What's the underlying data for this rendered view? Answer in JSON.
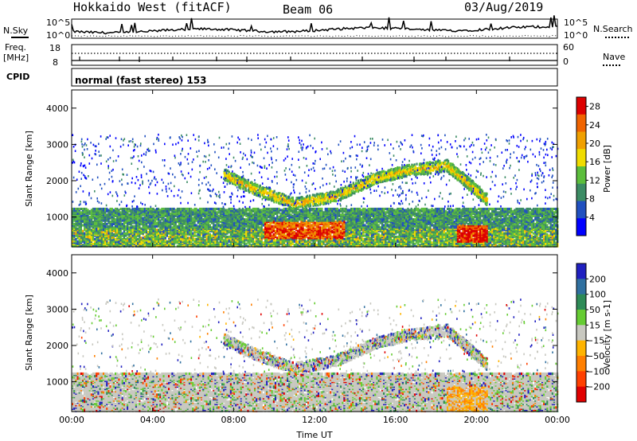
{
  "header": {
    "station": "Hokkaido West (fitACF)",
    "beam": "Beam 06",
    "date": "03/Aug/2019"
  },
  "top_panels": {
    "nsky_label": "N.Sky",
    "nsearch_label": "N.Search",
    "noise_ticks": [
      "10^5",
      "10^0"
    ],
    "freq_label_1": "Freq.",
    "freq_label_2": "[MHz]",
    "freq_ticks": [
      18,
      8
    ],
    "nave_label": "Nave",
    "nave_ticks": [
      60,
      0
    ],
    "cpid_label": "CPID",
    "cpid_text": "normal (fast stereo) 153"
  },
  "chart_data": [
    {
      "type": "heatmap",
      "name": "power",
      "ylabel": "Slant Range [km]",
      "xlabel": "",
      "ylim": [
        180,
        4500
      ],
      "yticks": [
        1000,
        2000,
        3000,
        4000
      ],
      "colorbar_label": "Power [dB]",
      "colorbar_ticks": [
        4,
        8,
        12,
        16,
        20,
        24,
        28
      ],
      "colorbar_range": [
        0,
        30
      ],
      "colors": [
        "#0000ff",
        "#2050c0",
        "#3c8c64",
        "#5cbe3c",
        "#f0dc00",
        "#f0a000",
        "#f06400",
        "#dc0000"
      ],
      "echo_bands": [
        {
          "from_hour": 0,
          "to_hour": 24,
          "range_min_km": 200,
          "range_max_km": 1250,
          "typical_db": 14
        },
        {
          "from_hour": 9.5,
          "to_hour": 13.5,
          "range_min_km": 400,
          "range_max_km": 900,
          "typical_db": 20
        },
        {
          "from_hour": 19,
          "to_hour": 20.5,
          "range_min_km": 300,
          "range_max_km": 800,
          "typical_db": 22
        }
      ],
      "ionospheric_arcs": [
        {
          "hour": 7.5,
          "range_km": 2200
        },
        {
          "hour": 9.0,
          "range_km": 1800
        },
        {
          "hour": 11.0,
          "range_km": 1400
        },
        {
          "hour": 13.0,
          "range_km": 1600
        },
        {
          "hour": 15.0,
          "range_km": 2100
        },
        {
          "hour": 16.5,
          "range_km": 2300
        },
        {
          "hour": 18.5,
          "range_km": 2450
        },
        {
          "hour": 19.5,
          "range_km": 2000
        },
        {
          "hour": 20.5,
          "range_km": 1500
        }
      ]
    },
    {
      "type": "heatmap",
      "name": "velocity",
      "ylabel": "Slant Range [km]",
      "xlabel": "Time UT",
      "ylim": [
        180,
        4500
      ],
      "yticks": [
        1000,
        2000,
        3000,
        4000
      ],
      "xticks": [
        "00:00",
        "04:00",
        "08:00",
        "12:00",
        "16:00",
        "20:00",
        "00:00"
      ],
      "xrange_hours": [
        0,
        24
      ],
      "colorbar_label": "Velocity [m s-1]",
      "colorbar_ticks": [
        200,
        100,
        50,
        15,
        -15,
        -50,
        -100,
        -200
      ],
      "colors": [
        "#2020c0",
        "#3070a0",
        "#2e8b57",
        "#66cc33",
        "#c8c8c0",
        "#ffb400",
        "#ff7f00",
        "#ff4000",
        "#e00000"
      ]
    }
  ]
}
